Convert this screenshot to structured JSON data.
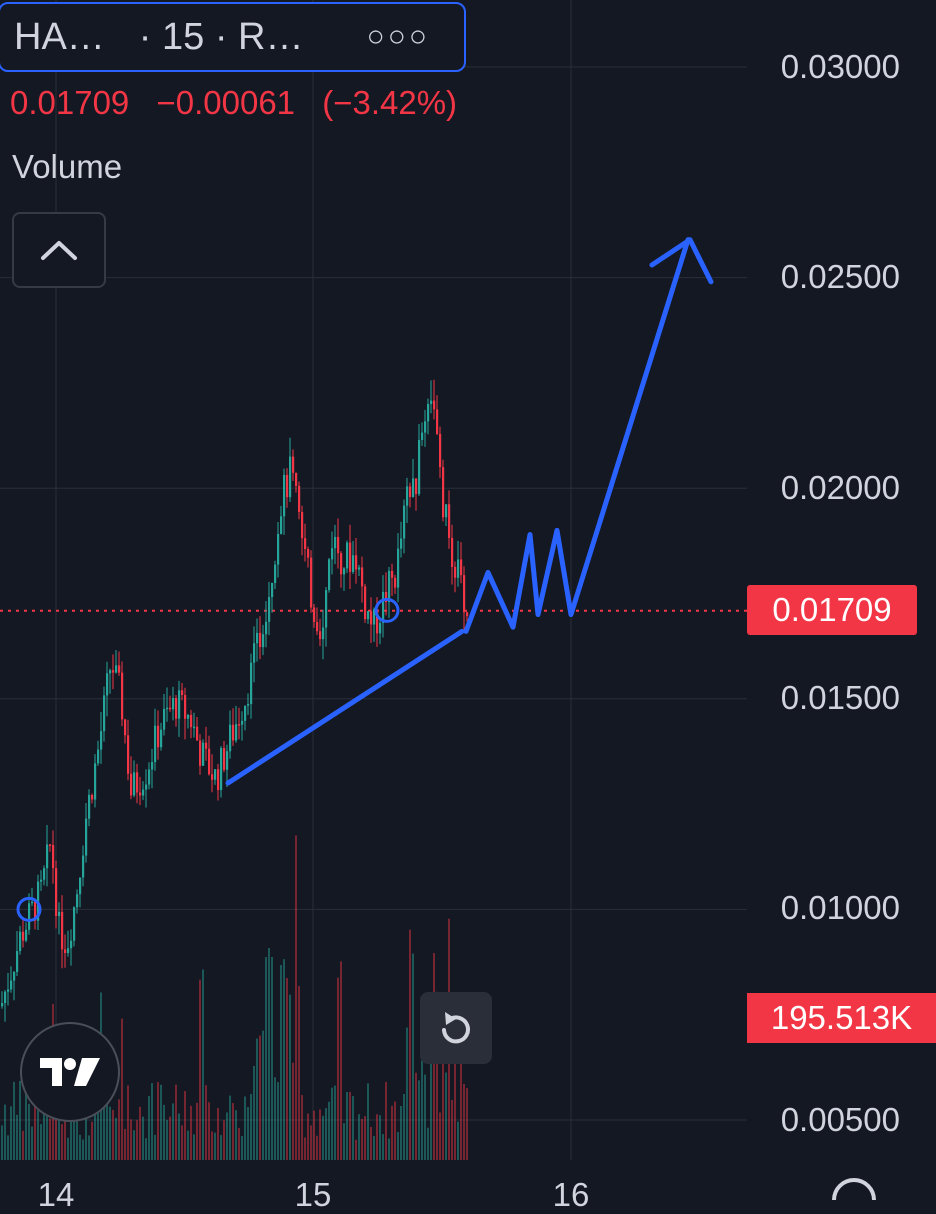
{
  "header": {
    "symbol": "HA…",
    "interval": "· 15 · R…",
    "more_icon": "more-dots-icon"
  },
  "quote": {
    "last": "0.01709",
    "change": "−0.00061",
    "change_pct": "(−3.42%)"
  },
  "volume_label": "Volume",
  "price_tag": "0.01709",
  "volume_tag": "195.513K",
  "colors": {
    "background": "#141823",
    "up": "#26a69a",
    "down": "#f23645",
    "drawing": "#2962ff",
    "grid": "#2a2e39"
  },
  "chart_data": {
    "type": "candlestick",
    "interval": "15",
    "y_ticks": [
      "0.03000",
      "0.02500",
      "0.02000",
      "0.01500",
      "0.01000",
      "0.00500"
    ],
    "ylim": [
      0.0048,
      0.0312
    ],
    "x_ticks": [
      "14",
      "15",
      "16"
    ],
    "last_price": 0.01709,
    "last_volume": "195.513K",
    "price_path": [
      {
        "x": 0,
        "y": 0.0077
      },
      {
        "x": 20,
        "y": 0.0094
      },
      {
        "x": 30,
        "y": 0.0099
      },
      {
        "x": 40,
        "y": 0.0104
      },
      {
        "x": 50,
        "y": 0.0116
      },
      {
        "x": 58,
        "y": 0.0095
      },
      {
        "x": 66,
        "y": 0.0092
      },
      {
        "x": 75,
        "y": 0.0103
      },
      {
        "x": 85,
        "y": 0.0122
      },
      {
        "x": 98,
        "y": 0.0139
      },
      {
        "x": 110,
        "y": 0.0159
      },
      {
        "x": 120,
        "y": 0.015
      },
      {
        "x": 130,
        "y": 0.0128
      },
      {
        "x": 145,
        "y": 0.0133
      },
      {
        "x": 160,
        "y": 0.0144
      },
      {
        "x": 175,
        "y": 0.0149
      },
      {
        "x": 190,
        "y": 0.0145
      },
      {
        "x": 200,
        "y": 0.0137
      },
      {
        "x": 215,
        "y": 0.0131
      },
      {
        "x": 230,
        "y": 0.0141
      },
      {
        "x": 245,
        "y": 0.0151
      },
      {
        "x": 258,
        "y": 0.0164
      },
      {
        "x": 270,
        "y": 0.0179
      },
      {
        "x": 280,
        "y": 0.0197
      },
      {
        "x": 290,
        "y": 0.0204
      },
      {
        "x": 300,
        "y": 0.0189
      },
      {
        "x": 312,
        "y": 0.0172
      },
      {
        "x": 322,
        "y": 0.0166
      },
      {
        "x": 330,
        "y": 0.0189
      },
      {
        "x": 342,
        "y": 0.0183
      },
      {
        "x": 355,
        "y": 0.0184
      },
      {
        "x": 365,
        "y": 0.0171
      },
      {
        "x": 373,
        "y": 0.0167
      },
      {
        "x": 385,
        "y": 0.0175
      },
      {
        "x": 395,
        "y": 0.018
      },
      {
        "x": 405,
        "y": 0.0196
      },
      {
        "x": 415,
        "y": 0.0202
      },
      {
        "x": 425,
        "y": 0.022
      },
      {
        "x": 432,
        "y": 0.0224
      },
      {
        "x": 440,
        "y": 0.0198
      },
      {
        "x": 450,
        "y": 0.0186
      },
      {
        "x": 458,
        "y": 0.0178
      },
      {
        "x": 465,
        "y": 0.0171
      }
    ],
    "annotations": {
      "trendline": [
        [
          228,
          0.013
        ],
        [
          462,
          0.0166
        ]
      ],
      "zigzag": [
        [
          466,
          0.0166
        ],
        [
          488,
          0.018
        ],
        [
          513,
          0.0167
        ],
        [
          530,
          0.0189
        ],
        [
          538,
          0.017
        ],
        [
          557,
          0.019
        ],
        [
          571,
          0.017
        ],
        [
          688,
          0.0259
        ]
      ],
      "arrowhead": [
        [
          652,
          0.0253
        ],
        [
          690,
          0.0259
        ],
        [
          711,
          0.0249
        ]
      ],
      "circle_markers": [
        [
          29,
          0.01
        ],
        [
          387,
          0.0171
        ]
      ]
    }
  }
}
